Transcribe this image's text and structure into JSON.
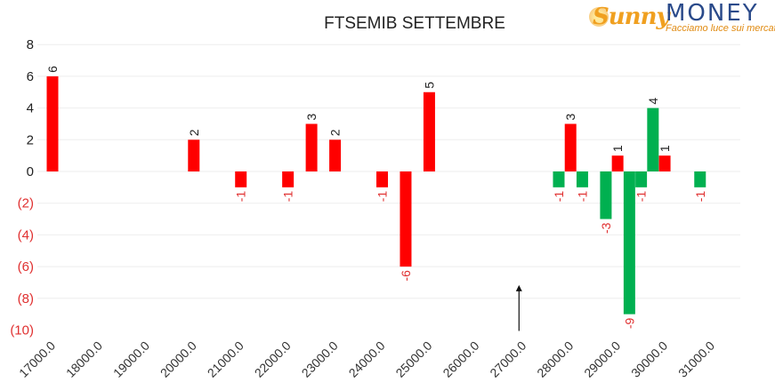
{
  "logo": {
    "brand_left": "Sunny",
    "brand_right": "MONEY",
    "tagline": "Facciamo luce sui mercati"
  },
  "chart_data": {
    "type": "bar",
    "title": "FTSEMIB SETTEMBRE",
    "xlabel": "",
    "ylabel": "",
    "ylim": [
      -10,
      8
    ],
    "xlim": [
      17000,
      31000
    ],
    "grid": true,
    "y_ticks": [
      "8",
      "6",
      "4",
      "2",
      "0",
      "(2)",
      "(4)",
      "(6)",
      "(8)",
      "(10)"
    ],
    "y_tick_values": [
      8,
      6,
      4,
      2,
      0,
      -2,
      -4,
      -6,
      -8,
      -10
    ],
    "x_ticks": [
      "17000.0",
      "18000.0",
      "19000.0",
      "20000.0",
      "21000.0",
      "22000.0",
      "23000.0",
      "24000.0",
      "25000.0",
      "26000.0",
      "27000.0",
      "28000.0",
      "29000.0",
      "30000.0",
      "31000.0"
    ],
    "x_tick_values": [
      17000,
      18000,
      19000,
      20000,
      21000,
      22000,
      23000,
      24000,
      25000,
      26000,
      27000,
      28000,
      29000,
      30000,
      31000
    ],
    "colors": {
      "red": "#ff0000",
      "green": "#00b050",
      "negative_label": "#e03030",
      "positive_label": "#222222"
    },
    "series": [
      {
        "color": "red",
        "points": [
          {
            "x": 17000,
            "y": 6,
            "label": "6"
          },
          {
            "x": 20000,
            "y": 2,
            "label": "2"
          },
          {
            "x": 21000,
            "y": -1,
            "label": "-1"
          },
          {
            "x": 22000,
            "y": -1,
            "label": "-1"
          },
          {
            "x": 22500,
            "y": 3,
            "label": "3"
          },
          {
            "x": 23000,
            "y": 2,
            "label": "2"
          },
          {
            "x": 24000,
            "y": -1,
            "label": "-1"
          },
          {
            "x": 24500,
            "y": -6,
            "label": "-6"
          },
          {
            "x": 25000,
            "y": 5,
            "label": "5"
          },
          {
            "x": 28000,
            "y": 3,
            "label": "3"
          },
          {
            "x": 29000,
            "y": 1,
            "label": "1"
          },
          {
            "x": 30000,
            "y": 1,
            "label": "1"
          }
        ]
      },
      {
        "color": "green",
        "points": [
          {
            "x": 27750,
            "y": -1,
            "label": "-1"
          },
          {
            "x": 28250,
            "y": -1,
            "label": "-1"
          },
          {
            "x": 28750,
            "y": -3,
            "label": "-3"
          },
          {
            "x": 29250,
            "y": -9,
            "label": "-9"
          },
          {
            "x": 29500,
            "y": -1,
            "label": "-1"
          },
          {
            "x": 29750,
            "y": 4,
            "label": "4"
          },
          {
            "x": 30750,
            "y": -1,
            "label": "-1"
          }
        ]
      }
    ],
    "annotation": {
      "type": "arrow",
      "x": 27000,
      "y_from": -10,
      "y_to": -7.5
    }
  }
}
